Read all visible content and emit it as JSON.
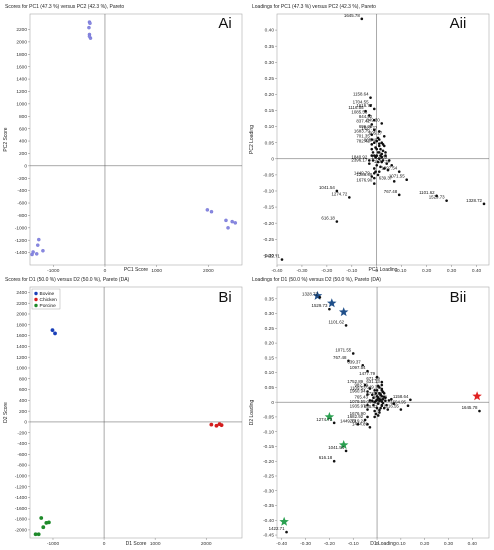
{
  "chart_data": [
    {
      "id": "Ai",
      "type": "scatter",
      "panel_label": "Ai",
      "title": "Scores for PC1 (47.3 %) versus PC2 (42.3 %), Pareto",
      "xlabel": "PC1 Score",
      "ylabel": "PC2 Score",
      "xlim": [
        -1450,
        2650
      ],
      "ylim": [
        -1600,
        2450
      ],
      "xticks": [
        -1000,
        0,
        1000,
        2000
      ],
      "yticks": [
        -1400,
        -1200,
        -1000,
        -800,
        -600,
        -400,
        -200,
        0,
        200,
        400,
        600,
        800,
        1000,
        1200,
        1400,
        1600,
        1800,
        2000,
        2200
      ],
      "color": "#8888e0",
      "points": [
        [
          -300,
          2320
        ],
        [
          -290,
          2300
        ],
        [
          -310,
          2230
        ],
        [
          -300,
          2120
        ],
        [
          -280,
          2060
        ],
        [
          -300,
          2090
        ],
        [
          -1280,
          -1190
        ],
        [
          -1300,
          -1280
        ],
        [
          -1200,
          -1370
        ],
        [
          -1320,
          -1420
        ],
        [
          -1390,
          -1390
        ],
        [
          -1410,
          -1430
        ],
        [
          1980,
          -710
        ],
        [
          2060,
          -740
        ],
        [
          2340,
          -880
        ],
        [
          2380,
          -1000
        ],
        [
          2460,
          -900
        ],
        [
          2520,
          -920
        ]
      ]
    },
    {
      "id": "Aii",
      "type": "scatter",
      "panel_label": "Aii",
      "title": "Loadings for PC1 (47.3 %) versus PC2 (42.3 %), Pareto",
      "xlabel": "PC1 Loading",
      "ylabel": "PC2 Loading",
      "xlim": [
        -0.4,
        0.45
      ],
      "ylim": [
        -0.33,
        0.45
      ],
      "xticks": [
        -0.4,
        -0.3,
        -0.2,
        -0.1,
        0,
        0.1,
        0.2,
        0.3,
        0.4
      ],
      "yticks": [
        -0.3,
        -0.25,
        -0.2,
        -0.15,
        -0.1,
        -0.05,
        0,
        0.05,
        0.1,
        0.15,
        0.2,
        0.25,
        0.3,
        0.35,
        0.4
      ],
      "labeled_points": [
        {
          "x": -0.06,
          "y": 0.435,
          "label": "1645.78"
        },
        {
          "x": -0.025,
          "y": 0.19,
          "label": "1158.64"
        },
        {
          "x": -0.025,
          "y": 0.165,
          "label": "1704.55"
        },
        {
          "x": -0.045,
          "y": 0.148,
          "label": "1116.55"
        },
        {
          "x": -0.01,
          "y": 0.155,
          "label": "1616.77"
        },
        {
          "x": -0.03,
          "y": 0.135,
          "label": "1085.53"
        },
        {
          "x": -0.01,
          "y": 0.12,
          "label": "844.52"
        },
        {
          "x": 0.02,
          "y": 0.11,
          "label": "849.30"
        },
        {
          "x": -0.02,
          "y": 0.107,
          "label": "837.42"
        },
        {
          "x": -0.01,
          "y": 0.09,
          "label": "696.38"
        },
        {
          "x": 0.01,
          "y": 0.085,
          "label": "1627.77"
        },
        {
          "x": -0.02,
          "y": 0.075,
          "label": "1683.79"
        },
        {
          "x": 0.03,
          "y": 0.07,
          "label": "605.27"
        },
        {
          "x": -0.02,
          "y": 0.06,
          "label": "701.35"
        },
        {
          "x": 0.01,
          "y": 0.047,
          "label": "865.40"
        },
        {
          "x": -0.02,
          "y": 0.045,
          "label": "782.42"
        },
        {
          "x": -0.03,
          "y": -0.005,
          "label": "1840.92"
        },
        {
          "x": -0.03,
          "y": -0.015,
          "label": "2396.17"
        },
        {
          "x": 0.05,
          "y": -0.005,
          "label": "1752.89"
        },
        {
          "x": 0.06,
          "y": -0.02,
          "label": "1477.79"
        },
        {
          "x": 0.09,
          "y": -0.04,
          "label": "1097.54"
        },
        {
          "x": -0.02,
          "y": -0.055,
          "label": "1449.79"
        },
        {
          "x": -0.01,
          "y": -0.06,
          "label": "1286.69"
        },
        {
          "x": 0.12,
          "y": -0.065,
          "label": "1071.55"
        },
        {
          "x": 0.07,
          "y": -0.07,
          "label": "639.37"
        },
        {
          "x": -0.01,
          "y": -0.077,
          "label": "1676.90"
        },
        {
          "x": -0.16,
          "y": -0.1,
          "label": "1041.54"
        },
        {
          "x": 0.09,
          "y": -0.112,
          "label": "767.48"
        },
        {
          "x": 0.24,
          "y": -0.115,
          "label": "1101.62"
        },
        {
          "x": -0.11,
          "y": -0.12,
          "label": "1274.72"
        },
        {
          "x": 0.28,
          "y": -0.13,
          "label": "1529.73"
        },
        {
          "x": 0.43,
          "y": -0.14,
          "label": "1328.72"
        },
        {
          "x": -0.16,
          "y": -0.195,
          "label": "616.18"
        },
        {
          "x": -0.38,
          "y": -0.313,
          "label": "1422.71"
        }
      ],
      "cluster_points": [
        [
          0,
          0.03
        ],
        [
          0.01,
          0.02
        ],
        [
          -0.01,
          0.01
        ],
        [
          0.02,
          -0.01
        ],
        [
          0,
          -0.02
        ],
        [
          0.01,
          0.04
        ],
        [
          -0.01,
          -0.03
        ],
        [
          0.02,
          0.015
        ],
        [
          0.015,
          -0.025
        ],
        [
          -0.005,
          0.005
        ],
        [
          0.005,
          -0.01
        ],
        [
          0.025,
          0.025
        ],
        [
          -0.015,
          0.02
        ],
        [
          0.01,
          0
        ],
        [
          0,
          0.055
        ],
        [
          -0.005,
          -0.04
        ],
        [
          0.03,
          -0.03
        ],
        [
          0.02,
          0.05
        ],
        [
          -0.02,
          0.03
        ],
        [
          0.005,
          0.065
        ],
        [
          0.015,
          0.03
        ],
        [
          0.035,
          0.01
        ],
        [
          -0.01,
          -0.045
        ],
        [
          0.04,
          -0.015
        ],
        [
          0.005,
          0.02
        ],
        [
          -0.015,
          -0.005
        ],
        [
          0.025,
          -0.005
        ],
        [
          0.01,
          -0.04
        ],
        [
          0.03,
          0.04
        ],
        [
          0,
          0.01
        ],
        [
          -0.005,
          0.035
        ],
        [
          0.02,
          0.005
        ],
        [
          0.01,
          0.06
        ],
        [
          0.045,
          -0.035
        ],
        [
          -0.02,
          0.01
        ],
        [
          0.035,
          0.02
        ],
        [
          0.005,
          -0.05
        ],
        [
          -0.01,
          0.05
        ],
        [
          0.015,
          0.01
        ],
        [
          0.025,
          0.045
        ]
      ]
    },
    {
      "id": "Bi",
      "type": "scatter",
      "panel_label": "Bi",
      "title": "Scores for D1 (50.0 %) versus D2 (50.0 %), Pareto (DA)",
      "xlabel": "D1 Score",
      "ylabel": "D2 Score",
      "xlim": [
        -1450,
        2700
      ],
      "ylim": [
        -2150,
        2500
      ],
      "xticks": [
        -1000,
        0,
        1000,
        2000
      ],
      "yticks": [
        -2000,
        -1800,
        -1600,
        -1400,
        -1200,
        -1000,
        -800,
        -600,
        -400,
        -200,
        0,
        200,
        400,
        600,
        800,
        1000,
        1200,
        1400,
        1600,
        1800,
        2000,
        2200,
        2400
      ],
      "legend": [
        {
          "name": "Bovine",
          "color": "#1a3fb8"
        },
        {
          "name": "Chicken",
          "color": "#d41c1c"
        },
        {
          "name": "Porcine",
          "color": "#1e8a2a"
        }
      ],
      "series": [
        {
          "name": "Bovine",
          "color": "#1a3fb8",
          "points": [
            [
              -1170,
              2400
            ],
            [
              -1230,
              2300
            ],
            [
              -1130,
              2200
            ],
            [
              -1260,
              2240
            ],
            [
              -1010,
              1700
            ],
            [
              -960,
              1640
            ]
          ]
        },
        {
          "name": "Chicken",
          "color": "#d41c1c",
          "points": [
            [
              2100,
              -50
            ],
            [
              2200,
              -70
            ],
            [
              2260,
              -40
            ],
            [
              2300,
              -60
            ]
          ]
        },
        {
          "name": "Porcine",
          "color": "#1e8a2a",
          "points": [
            [
              -1230,
              -1780
            ],
            [
              -1190,
              -1950
            ],
            [
              -1130,
              -1870
            ],
            [
              -1080,
              -1860
            ],
            [
              -1280,
              -2080
            ],
            [
              -1340,
              -2080
            ]
          ]
        }
      ]
    },
    {
      "id": "Bii",
      "type": "scatter",
      "panel_label": "Bii",
      "title": "Loadings for D1 (50.0 %) versus D2 (50.0 %), Pareto (DA)",
      "xlabel": "D1 Loading",
      "ylabel": "D2 Loading",
      "xlim": [
        -0.42,
        0.47
      ],
      "ylim": [
        -0.46,
        0.39
      ],
      "xticks": [
        -0.4,
        -0.3,
        -0.2,
        -0.1,
        0,
        0.1,
        0.2,
        0.3,
        0.4
      ],
      "yticks": [
        -0.45,
        -0.4,
        -0.35,
        -0.3,
        -0.25,
        -0.2,
        -0.15,
        -0.1,
        -0.05,
        0,
        0.05,
        0.1,
        0.15,
        0.2,
        0.25,
        0.3,
        0.35
      ],
      "stars": [
        {
          "x": -0.25,
          "y": 0.36,
          "color": "#1f4f8a"
        },
        {
          "x": -0.19,
          "y": 0.335,
          "color": "#1f4f8a"
        },
        {
          "x": -0.14,
          "y": 0.305,
          "color": "#1f4f8a"
        },
        {
          "x": 0.42,
          "y": 0.02,
          "color": "#e02020"
        },
        {
          "x": -0.2,
          "y": -0.05,
          "color": "#2aa050"
        },
        {
          "x": -0.14,
          "y": -0.145,
          "color": "#2aa050"
        },
        {
          "x": -0.39,
          "y": -0.405,
          "color": "#2aa050"
        }
      ],
      "labeled_points": [
        {
          "x": -0.24,
          "y": 0.355,
          "label": "1328.72"
        },
        {
          "x": -0.2,
          "y": 0.315,
          "label": "1529.73"
        },
        {
          "x": -0.13,
          "y": 0.26,
          "label": "1101.62"
        },
        {
          "x": -0.1,
          "y": 0.165,
          "label": "1071.55"
        },
        {
          "x": -0.12,
          "y": 0.14,
          "label": "767.48"
        },
        {
          "x": -0.06,
          "y": 0.125,
          "label": "639.37"
        },
        {
          "x": -0.04,
          "y": 0.105,
          "label": "1097.54"
        },
        {
          "x": 0,
          "y": 0.085,
          "label": "1477.79"
        },
        {
          "x": 0.02,
          "y": 0.068,
          "label": "671.29"
        },
        {
          "x": -0.05,
          "y": 0.058,
          "label": "1752.89"
        },
        {
          "x": 0.02,
          "y": 0.058,
          "label": "631.13"
        },
        {
          "x": -0.03,
          "y": 0.046,
          "label": "982.79"
        },
        {
          "x": 0.02,
          "y": 0.04,
          "label": "649.30"
        },
        {
          "x": -0.04,
          "y": 0.036,
          "label": "1109.53"
        },
        {
          "x": -0.04,
          "y": 0.026,
          "label": "1960.94"
        },
        {
          "x": 0.03,
          "y": 0.018,
          "label": "731.38"
        },
        {
          "x": -0.03,
          "y": 0.006,
          "label": "765.43"
        },
        {
          "x": 0.05,
          "y": 0.006,
          "label": "696.38"
        },
        {
          "x": 0.14,
          "y": 0.008,
          "label": "1158.64"
        },
        {
          "x": 0.43,
          "y": -0.03,
          "label": "1645.78"
        },
        {
          "x": -0.04,
          "y": -0.01,
          "label": "1079.55"
        },
        {
          "x": 0.02,
          "y": -0.012,
          "label": "944.25"
        },
        {
          "x": 0.13,
          "y": -0.012,
          "label": "1604.95"
        },
        {
          "x": -0.04,
          "y": -0.025,
          "label": "1935.97"
        },
        {
          "x": 0.01,
          "y": -0.027,
          "label": "935.42"
        },
        {
          "x": 0.1,
          "y": -0.025,
          "label": "1116.55"
        },
        {
          "x": -0.18,
          "y": -0.07,
          "label": "1274.72"
        },
        {
          "x": -0.04,
          "y": -0.05,
          "label": "1676.90"
        },
        {
          "x": -0.05,
          "y": -0.06,
          "label": "1682.92"
        },
        {
          "x": -0.08,
          "y": -0.075,
          "label": "1449.79"
        },
        {
          "x": -0.04,
          "y": -0.075,
          "label": "2019.24"
        },
        {
          "x": -0.03,
          "y": -0.085,
          "label": "1444.89"
        },
        {
          "x": -0.13,
          "y": -0.165,
          "label": "1041.54"
        },
        {
          "x": -0.18,
          "y": -0.2,
          "label": "616.18"
        },
        {
          "x": -0.38,
          "y": -0.44,
          "label": "1422.71"
        }
      ],
      "cluster_points": [
        [
          0,
          0.02
        ],
        [
          0.01,
          0.01
        ],
        [
          -0.01,
          0
        ],
        [
          0.02,
          -0.01
        ],
        [
          0,
          -0.02
        ],
        [
          0.01,
          0.03
        ],
        [
          -0.01,
          -0.03
        ],
        [
          0.02,
          0.02
        ],
        [
          0.015,
          -0.02
        ],
        [
          -0.005,
          0.005
        ],
        [
          0.005,
          -0.005
        ],
        [
          0.025,
          0.01
        ],
        [
          -0.015,
          0.015
        ],
        [
          0.01,
          0.005
        ],
        [
          0,
          0.04
        ],
        [
          -0.005,
          -0.04
        ],
        [
          0.03,
          -0.02
        ],
        [
          0.02,
          0.045
        ],
        [
          -0.02,
          0.025
        ],
        [
          0.005,
          0.055
        ],
        [
          0.015,
          0.025
        ],
        [
          0.035,
          0.005
        ],
        [
          -0.01,
          -0.05
        ],
        [
          0.04,
          -0.01
        ],
        [
          0.005,
          0.015
        ],
        [
          -0.015,
          -0.01
        ],
        [
          0.025,
          -0.003
        ],
        [
          0.01,
          -0.035
        ],
        [
          0.03,
          0.03
        ],
        [
          0,
          0.008
        ],
        [
          -0.005,
          0.03
        ],
        [
          0.02,
          0.002
        ],
        [
          0.01,
          0.05
        ],
        [
          0.045,
          -0.025
        ],
        [
          -0.02,
          0.005
        ],
        [
          0.035,
          0.015
        ],
        [
          0.005,
          -0.045
        ],
        [
          -0.01,
          0.04
        ],
        [
          0.015,
          0.008
        ],
        [
          0.025,
          0.035
        ],
        [
          0.06,
          0.01
        ],
        [
          0.07,
          -0.005
        ]
      ]
    }
  ]
}
